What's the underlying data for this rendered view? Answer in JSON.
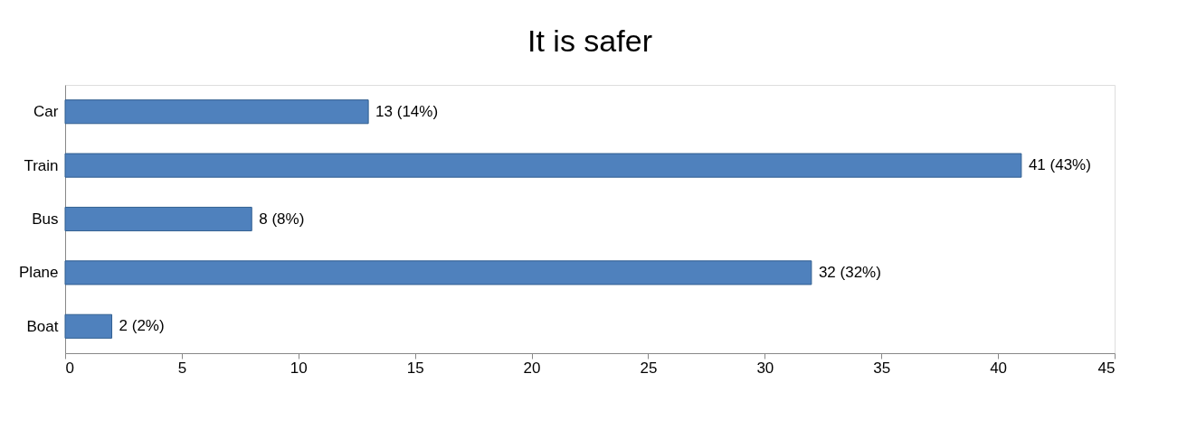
{
  "chart_data": {
    "type": "bar",
    "orientation": "horizontal",
    "title": "It is safer",
    "categories": [
      "Car",
      "Train",
      "Bus",
      "Plane",
      "Boat"
    ],
    "values": [
      13,
      41,
      8,
      32,
      2
    ],
    "value_labels": [
      "13 (14%)",
      "41 (43%)",
      "8 (8%)",
      "32 (32%)",
      "2 (2%)"
    ],
    "color": "#4f81bd",
    "xlim": [
      0,
      45
    ],
    "xticks": [
      0,
      5,
      10,
      15,
      20,
      25,
      30,
      35,
      40,
      45
    ]
  }
}
